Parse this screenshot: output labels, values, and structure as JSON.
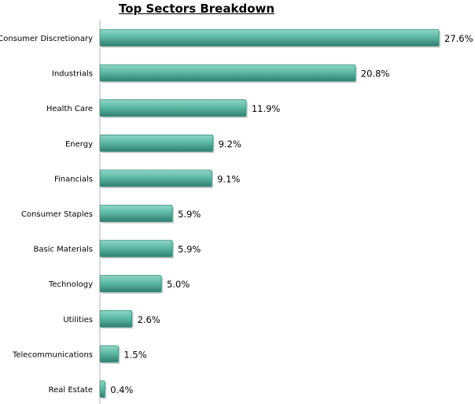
{
  "chart_data": {
    "type": "bar",
    "orientation": "horizontal",
    "title": "Top Sectors Breakdown",
    "xlabel": "",
    "ylabel": "",
    "xlim": [
      0,
      27.6
    ],
    "grid": false,
    "legend": "none",
    "categories": [
      "Consumer Discretionary",
      "Industrials",
      "Health Care",
      "Energy",
      "Financials",
      "Consumer Staples",
      "Basic Materials",
      "Technology",
      "Utilities",
      "Telecommunications",
      "Real Estate"
    ],
    "values": [
      27.6,
      20.8,
      11.9,
      9.2,
      9.1,
      5.9,
      5.9,
      5.0,
      2.6,
      1.5,
      0.4
    ],
    "value_labels": [
      "27.6%",
      "20.8%",
      "11.9%",
      "9.2%",
      "9.1%",
      "5.9%",
      "5.9%",
      "5.0%",
      "2.6%",
      "1.5%",
      "0.4%"
    ],
    "colors": {
      "bar_fill": "#5dbaa5",
      "bar_highlight": "#8fd6c6",
      "bar_shadow": "#2f7f6f",
      "bar_border": "#3a8d7c",
      "axis": "#7f7f7f"
    }
  }
}
